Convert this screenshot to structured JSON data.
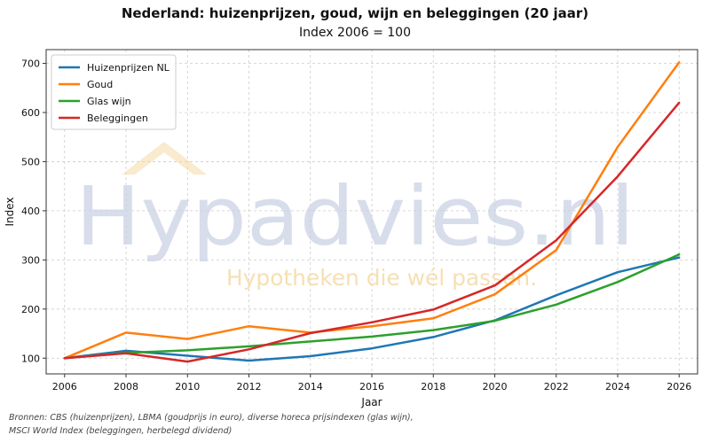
{
  "title": "Nederland: huizenprijzen, goud, wijn en beleggingen (20 jaar)",
  "subtitle": "Index 2006 = 100",
  "watermark": {
    "brand": "Hypadvies.nl",
    "tagline": "Hypotheken die wél passen."
  },
  "source_lines": [
    "Bronnen: CBS (huizenprijzen), LBMA (goudprijs in euro), diverse horeca prijsindexen (glas wijn),",
    "MSCI World Index (beleggingen, herbelegd dividend)"
  ],
  "colors": {
    "huizen": "#1f77b4",
    "goud": "#ff7f0e",
    "wijn": "#2ca02c",
    "beleggingen": "#d62728",
    "watermark_text": "#c9d2e3",
    "watermark_tagline": "#f5d9a6"
  },
  "chart_data": {
    "type": "line",
    "title": "Nederland: huizenprijzen, goud, wijn en beleggingen (20 jaar)",
    "subtitle": "Index 2006 = 100",
    "xlabel": "Jaar",
    "ylabel": "Index",
    "x": [
      2006,
      2008,
      2010,
      2012,
      2014,
      2016,
      2018,
      2020,
      2022,
      2024,
      2026
    ],
    "xlim": [
      2005.4,
      2026.6
    ],
    "ylim": [
      68,
      728
    ],
    "yticks": [
      100,
      200,
      300,
      400,
      500,
      600,
      700
    ],
    "grid": true,
    "legend_position": "top-left",
    "series": [
      {
        "name": "Huizenprijzen NL",
        "color": "#1f77b4",
        "values": [
          100,
          115,
          105,
          95,
          104,
          120,
          143,
          177,
          228,
          275,
          305
        ]
      },
      {
        "name": "Goud",
        "color": "#ff7f0e",
        "values": [
          100,
          152,
          139,
          165,
          152,
          165,
          181,
          230,
          320,
          530,
          702
        ]
      },
      {
        "name": "Glas wijn",
        "color": "#2ca02c",
        "values": [
          100,
          111,
          116,
          124,
          134,
          144,
          157,
          176,
          209,
          255,
          311
        ]
      },
      {
        "name": "Beleggingen",
        "color": "#d62728",
        "values": [
          100,
          110,
          93,
          118,
          151,
          173,
          199,
          248,
          340,
          470,
          620
        ]
      }
    ]
  }
}
